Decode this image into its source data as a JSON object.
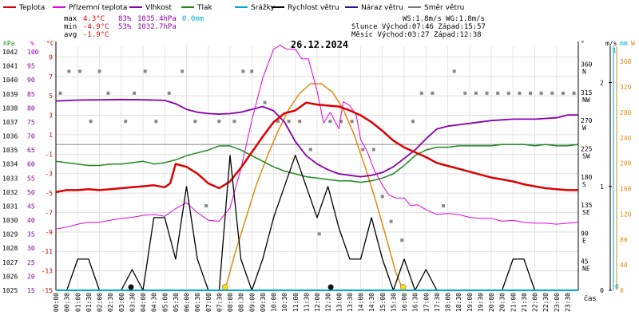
{
  "chart_data": {
    "type": "line",
    "title": "26.12.2024",
    "time_label": "čas",
    "legend": [
      {
        "key": "temp",
        "label": "Teplota",
        "color": "#dd0000"
      },
      {
        "key": "feels",
        "label": "Přízemní teplota",
        "color": "#e000e0"
      },
      {
        "key": "hum",
        "label": "Vlhkost",
        "color": "#8800aa"
      },
      {
        "key": "press",
        "label": "Tlak",
        "color": "#1e8a1e"
      },
      {
        "key": "rain",
        "label": "Srážky",
        "color": "#00aacc"
      },
      {
        "key": "wind",
        "label": "Rychlost větru",
        "color": "#000000"
      },
      {
        "key": "gust",
        "label": "Náraz větru",
        "color": "#1a1aa0"
      },
      {
        "key": "dir",
        "label": "Směr větru",
        "color": "#777777"
      }
    ],
    "stats": {
      "max": {
        "label": "max",
        "temp": "4.3°C",
        "hum": "83%",
        "press": "1035.4hPa",
        "rain": "0.0mm"
      },
      "min": {
        "label": "min",
        "temp": "-4.9°C",
        "hum": "53%",
        "press": "1032.7hPa"
      },
      "avg": {
        "label": "avg",
        "temp": "-1.9°C"
      }
    },
    "info": {
      "line1": "WS:1.8m/s      WG:1.8m/s",
      "line2": "Slunce Východ:07:46  Západ:15:57",
      "line3": "Měsíc  Východ:03:27  Západ:12:38"
    },
    "units": {
      "press": "hPa",
      "hum": "%",
      "temp": "°C",
      "dir": "°",
      "wind": "m/s",
      "rain": "mm",
      "solar": "W"
    },
    "axes": {
      "press_ticks": [
        "1042",
        "1041",
        "1040",
        "1039",
        "1038",
        "1037",
        "1036",
        "1035",
        "1034",
        "1033",
        "1032",
        "1031",
        "1030",
        "1029",
        "1028",
        "1027",
        "1026",
        "1025"
      ],
      "hum_ticks": [
        "100",
        "95",
        "90",
        "85",
        "80",
        "75",
        "70",
        "65",
        "60",
        "55",
        "50",
        "45",
        "40",
        "35",
        "30",
        "25",
        "20",
        "15"
      ],
      "temp_ticks": [
        "9",
        "7",
        "5",
        "3",
        "1",
        "-1",
        "-3",
        "-5",
        "-7",
        "-9",
        "-11",
        "-13",
        "-15"
      ],
      "temp_ticks_top": [
        "9",
        "7",
        "5",
        "3",
        "1",
        "0",
        "-1",
        "-3",
        "-5",
        "-7",
        "-9",
        "-11",
        "-13",
        "-15"
      ],
      "dir_ticks": [
        {
          "v": "360",
          "n": "N"
        },
        {
          "v": "315",
          "n": "NW"
        },
        {
          "v": "270",
          "n": "W"
        },
        {
          "v": "225",
          "n": "SW"
        },
        {
          "v": "180",
          "n": "S"
        },
        {
          "v": "135",
          "n": "SE"
        },
        {
          "v": "90",
          "n": "E"
        },
        {
          "v": "45",
          "n": "NE"
        }
      ],
      "wind_ticks": [
        "2",
        "1",
        "0"
      ],
      "rain_ticks": [
        "-1",
        "0"
      ],
      "solar_ticks": [
        "360",
        "320",
        "280",
        "240",
        "200",
        "160",
        "120",
        "80",
        "40",
        "0"
      ],
      "time_ticks": [
        "00:00",
        "00:30",
        "01:00",
        "01:30",
        "02:00",
        "02:30",
        "03:00",
        "03:30",
        "04:00",
        "04:30",
        "05:00",
        "05:30",
        "06:00",
        "06:30",
        "07:00",
        "07:30",
        "08:00",
        "08:30",
        "09:00",
        "09:30",
        "10:00",
        "10:30",
        "11:00",
        "11:30",
        "12:00",
        "12:30",
        "13:00",
        "13:30",
        "14:00",
        "14:30",
        "15:00",
        "15:30",
        "16:00",
        "16:30",
        "17:00",
        "17:30",
        "18:00",
        "18:30",
        "19:00",
        "19:30",
        "20:00",
        "20:30",
        "21:00",
        "21:30",
        "22:00",
        "22:30",
        "23:00",
        "23:30"
      ]
    },
    "series": {
      "temp": {
        "x": [
          0,
          0.5,
          1,
          1.5,
          2,
          2.5,
          3,
          3.5,
          4,
          4.5,
          5,
          5.25,
          5.5,
          6,
          6.5,
          7,
          7.5,
          8,
          8.5,
          9,
          9.5,
          10,
          10.5,
          11,
          11.5,
          12,
          12.5,
          13,
          13.5,
          14,
          14.5,
          15,
          15.5,
          16,
          16.5,
          17,
          17.5,
          18,
          18.5,
          19,
          19.5,
          20,
          20.5,
          21,
          21.5,
          22,
          22.5,
          23,
          23.5,
          24
        ],
        "y": [
          -4.9,
          -4.7,
          -4.7,
          -4.6,
          -4.7,
          -4.6,
          -4.5,
          -4.4,
          -4.3,
          -4.2,
          -4.4,
          -4.0,
          -2.0,
          -2.3,
          -3.0,
          -4.0,
          -4.5,
          -3.8,
          -2.4,
          -0.8,
          0.8,
          2.3,
          3.2,
          3.5,
          4.3,
          4.1,
          4.0,
          3.9,
          3.5,
          3.0,
          2.3,
          1.4,
          0.4,
          -0.3,
          -0.8,
          -1.3,
          -1.9,
          -2.2,
          -2.5,
          -2.8,
          -3.1,
          -3.4,
          -3.6,
          -3.8,
          -4.1,
          -4.3,
          -4.5,
          -4.6,
          -4.7,
          -4.7
        ]
      },
      "feels": {
        "x": [
          0,
          0.5,
          1,
          1.5,
          2,
          2.5,
          3,
          3.5,
          4,
          4.5,
          5,
          5.5,
          6,
          6.5,
          7,
          7.5,
          8,
          8.5,
          9,
          9.5,
          10,
          10.3,
          10.6,
          11,
          11.3,
          11.6,
          12,
          12.3,
          12.6,
          13,
          13.2,
          13.5,
          13.8,
          14,
          14.3,
          14.6,
          15,
          15.3,
          15.6,
          16,
          16.3,
          16.6,
          17,
          17.5,
          18,
          18.5,
          19,
          19.5,
          20,
          20.5,
          21,
          21.5,
          22,
          22.5,
          23,
          23.5,
          24
        ],
        "y": [
          -8.7,
          -8.5,
          -8.2,
          -8.0,
          -8.0,
          -7.8,
          -7.6,
          -7.5,
          -7.3,
          -7.2,
          -7.4,
          -6.6,
          -6.0,
          -7.0,
          -7.8,
          -7.9,
          -6.5,
          -2.5,
          2.5,
          6.8,
          9.8,
          10.2,
          9.8,
          9.8,
          8.8,
          8.8,
          5.5,
          2.2,
          3.3,
          1.6,
          4.4,
          4.0,
          3.0,
          0.5,
          -0.7,
          -2.5,
          -4.2,
          -5.2,
          -5.5,
          -5.5,
          -6.3,
          -6.2,
          -6.7,
          -7.2,
          -7.1,
          -7.2,
          -7.5,
          -7.6,
          -7.6,
          -7.9,
          -7.8,
          -8.0,
          -8.1,
          -8.1,
          -8.2,
          -8.1,
          -8.0
        ]
      },
      "hum": {
        "x": [
          0,
          1,
          2,
          3,
          4,
          5,
          5.5,
          6,
          6.5,
          7,
          7.5,
          8,
          8.5,
          9,
          9.5,
          10,
          10.5,
          11,
          11.5,
          12,
          12.5,
          13,
          13.5,
          14,
          14.5,
          15,
          15.5,
          16,
          16.5,
          17,
          17.5,
          18,
          18.5,
          19,
          20,
          21,
          22,
          23,
          23.5,
          24
        ],
        "y": [
          82.5,
          82.8,
          82.9,
          83.0,
          82.9,
          82.7,
          81.5,
          79.5,
          78.5,
          78.0,
          77.8,
          78.0,
          78.5,
          79.5,
          80.5,
          79.0,
          75.0,
          68.0,
          63.0,
          60.0,
          58.0,
          56.5,
          56.0,
          55.5,
          56.0,
          57.0,
          59.0,
          62.0,
          65.0,
          69.0,
          72.5,
          73.5,
          74.0,
          74.5,
          75.5,
          76.0,
          76.0,
          76.5,
          77.5,
          77.5
        ]
      },
      "press": {
        "x": [
          0,
          0.5,
          1,
          1.5,
          2,
          2.5,
          3,
          3.5,
          4,
          4.5,
          5,
          5.5,
          6,
          6.5,
          7,
          7.5,
          8,
          8.5,
          9,
          9.5,
          10,
          10.5,
          11,
          11.5,
          12,
          12.5,
          13,
          13.5,
          14,
          14.5,
          15,
          15.5,
          16,
          16.5,
          17,
          17.5,
          18,
          18.5,
          19,
          19.5,
          20,
          20.5,
          21,
          21.5,
          22,
          22.5,
          23,
          23.5,
          24
        ],
        "y": [
          1034.2,
          1034.1,
          1034.0,
          1033.9,
          1033.9,
          1034.0,
          1034.0,
          1034.1,
          1034.2,
          1034.0,
          1034.1,
          1034.3,
          1034.6,
          1034.8,
          1035.0,
          1035.3,
          1035.3,
          1035.0,
          1034.6,
          1034.2,
          1033.8,
          1033.5,
          1033.3,
          1033.1,
          1033.0,
          1032.9,
          1032.8,
          1032.8,
          1032.7,
          1032.8,
          1033.0,
          1033.3,
          1033.9,
          1034.6,
          1035.0,
          1035.2,
          1035.2,
          1035.3,
          1035.3,
          1035.3,
          1035.3,
          1035.4,
          1035.4,
          1035.4,
          1035.3,
          1035.4,
          1035.3,
          1035.3,
          1035.4
        ]
      },
      "wind": {
        "x": [
          0,
          0.5,
          1,
          1.5,
          2,
          2.5,
          3,
          3.5,
          4,
          4.5,
          5,
          5.5,
          6,
          6.5,
          7,
          7.5,
          8,
          8.5,
          9,
          9.5,
          10,
          10.5,
          11,
          11.5,
          12,
          12.5,
          13,
          13.5,
          14,
          14.5,
          15,
          15.5,
          16,
          16.5,
          17,
          17.5,
          18,
          18.5,
          19,
          19.5,
          20,
          20.5,
          21,
          21.5,
          22,
          22.5,
          23,
          23.5,
          24
        ],
        "y": [
          0.0,
          0.0,
          0.3,
          0.3,
          0.0,
          0.0,
          0.0,
          0.2,
          0.0,
          0.7,
          0.7,
          0.3,
          1.0,
          0.3,
          0.0,
          0.0,
          1.3,
          0.3,
          0.0,
          0.3,
          0.7,
          1.0,
          1.3,
          1.0,
          0.7,
          1.0,
          0.6,
          0.3,
          0.3,
          0.7,
          0.3,
          0.0,
          0.3,
          0.0,
          0.2,
          0.0,
          0.0,
          0.0,
          0.0,
          0.0,
          0.0,
          0.0,
          0.3,
          0.3,
          0.0,
          0.0,
          0.0,
          0.0,
          0.0
        ]
      },
      "gust": {
        "x": [
          0,
          24
        ],
        "y": [
          0,
          0
        ]
      },
      "dir": {
        "x": [
          0.2,
          0.6,
          1.1,
          1.6,
          2.0,
          2.4,
          3.2,
          3.6,
          4.1,
          4.6,
          5.2,
          5.8,
          6.4,
          6.9,
          7.5,
          8.2,
          8.6,
          9.0,
          9.6,
          10.2,
          10.7,
          11.2,
          11.7,
          12.1,
          12.6,
          13.1,
          13.6,
          14.1,
          14.6,
          15.0,
          15.4,
          15.9,
          16.4,
          16.8,
          17.3,
          17.8,
          18.3,
          18.8,
          19.3,
          19.8,
          20.3,
          20.8,
          21.3,
          21.8,
          22.3,
          22.8,
          23.3,
          23.8
        ],
        "y": [
          315,
          350,
          350,
          270,
          350,
          315,
          270,
          315,
          350,
          270,
          315,
          350,
          270,
          135,
          270,
          270,
          350,
          350,
          300,
          270,
          270,
          270,
          225,
          90,
          270,
          270,
          270,
          225,
          225,
          150,
          110,
          80,
          270,
          315,
          315,
          135,
          350,
          315,
          315,
          315,
          315,
          315,
          315,
          315,
          315,
          315,
          315,
          315
        ]
      },
      "solar": {
        "x": [
          7.77,
          8.2,
          8.7,
          9.2,
          9.7,
          10.2,
          10.7,
          11.2,
          11.7,
          12.2,
          12.7,
          13.2,
          13.7,
          14.2,
          14.7,
          15.2,
          15.6,
          15.95
        ],
        "y": [
          0,
          55,
          110,
          165,
          210,
          250,
          285,
          310,
          325,
          325,
          312,
          285,
          245,
          195,
          140,
          80,
          30,
          0
        ]
      }
    },
    "ranges": {
      "time": [
        0,
        24
      ],
      "press": [
        1025,
        1042.4
      ],
      "temp": [
        -15,
        10.1
      ],
      "hum": [
        15,
        102
      ],
      "dir": [
        0,
        390
      ],
      "wind": [
        0,
        2.35
      ],
      "solar": [
        0,
        384
      ]
    },
    "sun_events": [
      7.77,
      15.95
    ],
    "moon_events": [
      3.45,
      12.63
    ],
    "grid": true
  }
}
